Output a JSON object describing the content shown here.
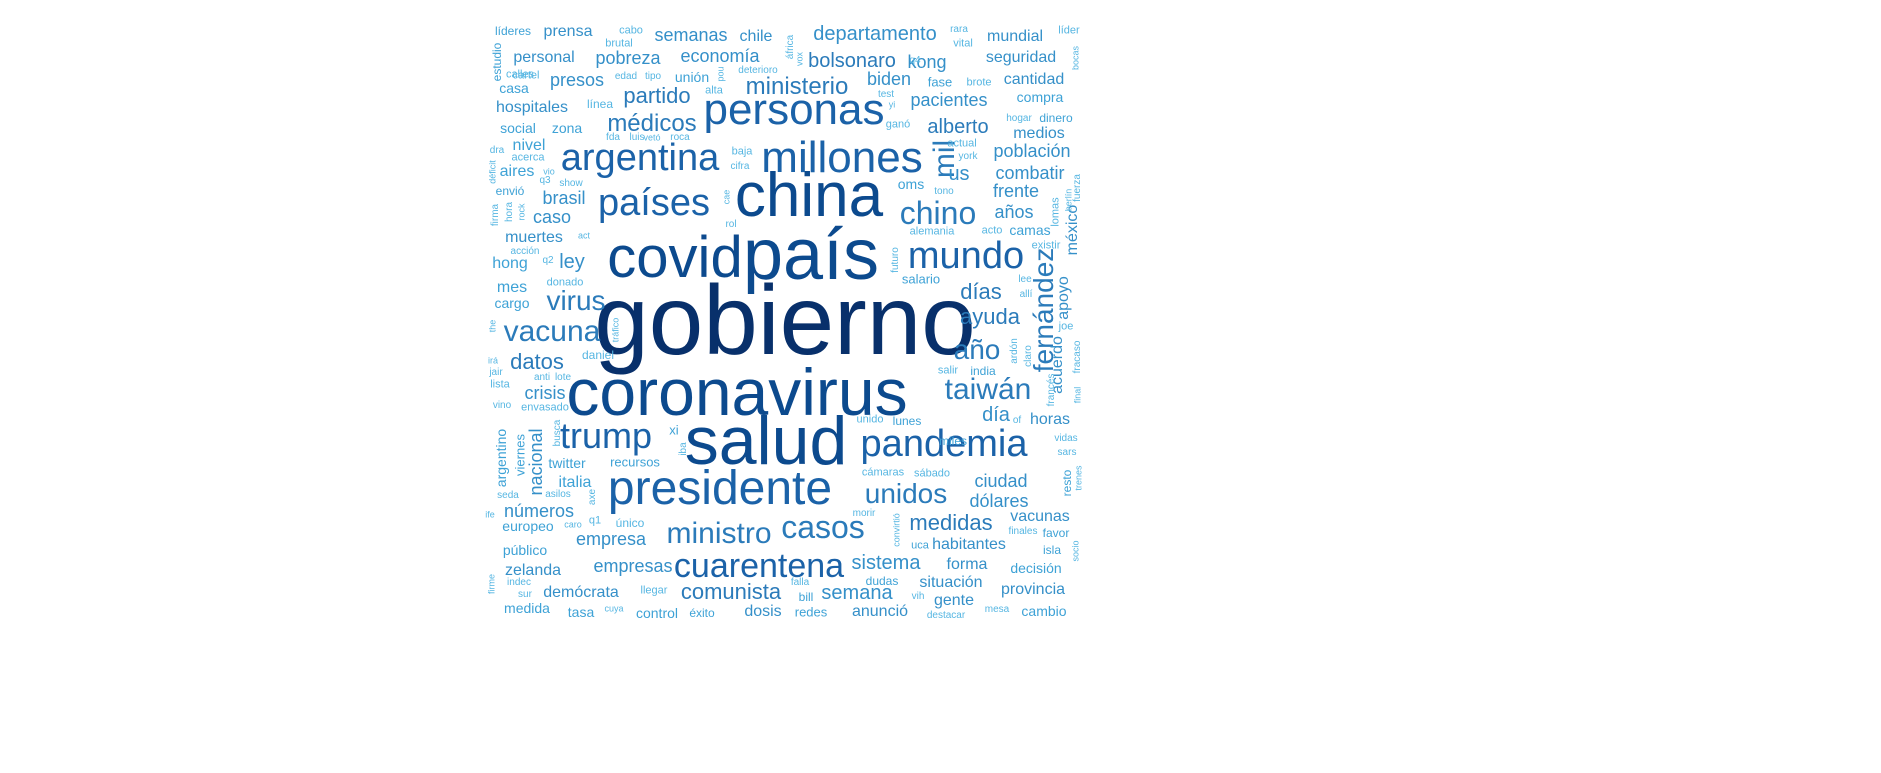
{
  "palette": {
    "darkest": "#08306b",
    "dark": "#0c4a8e",
    "mid_dark": "#1b62a8",
    "mid": "#2b7bba",
    "mid_light": "#3590c9",
    "light": "#3ea2d6",
    "lightest": "#56b6e2"
  },
  "words": [
    {
      "text": "gobierno",
      "tone": "darkest"
    },
    {
      "text": "coronavirus",
      "tone": "dark"
    },
    {
      "text": "salud",
      "tone": "dark"
    },
    {
      "text": "país",
      "tone": "dark"
    },
    {
      "text": "covid",
      "tone": "dark"
    },
    {
      "text": "china",
      "tone": "dark"
    },
    {
      "text": "presidente",
      "tone": "mid_dark"
    },
    {
      "text": "personas",
      "tone": "mid_dark"
    },
    {
      "text": "millones",
      "tone": "mid_dark"
    },
    {
      "text": "argentina",
      "tone": "mid_dark"
    },
    {
      "text": "países",
      "tone": "mid_dark"
    },
    {
      "text": "mundo",
      "tone": "mid_dark"
    },
    {
      "text": "pandemia",
      "tone": "mid_dark"
    },
    {
      "text": "trump",
      "tone": "mid_dark"
    },
    {
      "text": "cuarentena",
      "tone": "mid_dark"
    },
    {
      "text": "vacuna",
      "tone": "mid"
    },
    {
      "text": "casos",
      "tone": "mid"
    },
    {
      "text": "chino",
      "tone": "mid"
    },
    {
      "text": "taiwán",
      "tone": "mid"
    },
    {
      "text": "unidos",
      "tone": "mid"
    },
    {
      "text": "ministro",
      "tone": "mid"
    },
    {
      "text": "mil",
      "tone": "mid"
    },
    {
      "text": "fernández",
      "tone": "mid"
    },
    {
      "text": "virus",
      "tone": "mid"
    },
    {
      "text": "año",
      "tone": "mid"
    },
    {
      "text": "médicos",
      "tone": "mid"
    },
    {
      "text": "partido",
      "tone": "mid"
    },
    {
      "text": "ministerio",
      "tone": "mid"
    },
    {
      "text": "bolsonaro",
      "tone": "mid"
    },
    {
      "text": "alberto",
      "tone": "mid"
    },
    {
      "text": "ayuda",
      "tone": "mid"
    },
    {
      "text": "días",
      "tone": "mid"
    },
    {
      "text": "datos",
      "tone": "mid"
    },
    {
      "text": "medidas",
      "tone": "mid"
    },
    {
      "text": "comunista",
      "tone": "mid"
    },
    {
      "text": "sistema",
      "tone": "mid_light"
    },
    {
      "text": "semana",
      "tone": "mid_light"
    },
    {
      "text": "empresa",
      "tone": "mid_light"
    },
    {
      "text": "economía",
      "tone": "mid_light"
    },
    {
      "text": "departamento",
      "tone": "mid_light"
    },
    {
      "text": "pacientes",
      "tone": "mid_light"
    },
    {
      "text": "biden",
      "tone": "mid_light"
    },
    {
      "text": "kong",
      "tone": "mid_light"
    },
    {
      "text": "us",
      "tone": "mid_light"
    },
    {
      "text": "día",
      "tone": "mid_light"
    },
    {
      "text": "ley",
      "tone": "mid_light"
    },
    {
      "text": "brasil",
      "tone": "mid_light"
    },
    {
      "text": "caso",
      "tone": "mid_light"
    },
    {
      "text": "crisis",
      "tone": "mid_light"
    },
    {
      "text": "ciudad",
      "tone": "mid_light"
    },
    {
      "text": "dólares",
      "tone": "mid_light"
    },
    {
      "text": "años",
      "tone": "mid_light"
    },
    {
      "text": "frente",
      "tone": "mid_light"
    },
    {
      "text": "combatir",
      "tone": "mid_light"
    },
    {
      "text": "población",
      "tone": "mid_light"
    },
    {
      "text": "medios",
      "tone": "mid_light"
    },
    {
      "text": "cantidad",
      "tone": "mid_light"
    },
    {
      "text": "seguridad",
      "tone": "mid_light"
    },
    {
      "text": "mundial",
      "tone": "mid_light"
    },
    {
      "text": "pobreza",
      "tone": "mid_light"
    },
    {
      "text": "semanas",
      "tone": "mid_light"
    },
    {
      "text": "prensa",
      "tone": "mid_light"
    },
    {
      "text": "chile",
      "tone": "mid_light"
    },
    {
      "text": "presos",
      "tone": "mid_light"
    },
    {
      "text": "hospitales",
      "tone": "mid_light"
    },
    {
      "text": "personal",
      "tone": "mid_light"
    },
    {
      "text": "muertes",
      "tone": "mid_light"
    },
    {
      "text": "números",
      "tone": "mid_light"
    },
    {
      "text": "nacional",
      "tone": "mid_light"
    },
    {
      "text": "empresas",
      "tone": "mid_light"
    },
    {
      "text": "zelanda",
      "tone": "mid_light"
    },
    {
      "text": "demócrata",
      "tone": "mid_light"
    },
    {
      "text": "habitantes",
      "tone": "mid_light"
    },
    {
      "text": "situación",
      "tone": "mid_light"
    },
    {
      "text": "provincia",
      "tone": "mid_light"
    },
    {
      "text": "anunció",
      "tone": "mid_light"
    },
    {
      "text": "dosis",
      "tone": "mid_light"
    },
    {
      "text": "vacunas",
      "tone": "mid_light"
    },
    {
      "text": "horas",
      "tone": "mid_light"
    },
    {
      "text": "forma",
      "tone": "mid_light"
    },
    {
      "text": "gente",
      "tone": "mid_light"
    },
    {
      "text": "acuerdo",
      "tone": "mid_light"
    },
    {
      "text": "apoyo",
      "tone": "mid_light"
    },
    {
      "text": "méxico",
      "tone": "mid_light"
    },
    {
      "text": "hong",
      "tone": "light"
    },
    {
      "text": "mes",
      "tone": "light"
    },
    {
      "text": "cargo",
      "tone": "light"
    },
    {
      "text": "social",
      "tone": "light"
    },
    {
      "text": "zona",
      "tone": "light"
    },
    {
      "text": "nivel",
      "tone": "light"
    },
    {
      "text": "aires",
      "tone": "light"
    },
    {
      "text": "envió",
      "tone": "light"
    },
    {
      "text": "casa",
      "tone": "light"
    },
    {
      "text": "estudio",
      "tone": "light"
    },
    {
      "text": "líderes",
      "tone": "light"
    },
    {
      "text": "unión",
      "tone": "light"
    },
    {
      "text": "italia",
      "tone": "light"
    },
    {
      "text": "twitter",
      "tone": "light"
    },
    {
      "text": "recursos",
      "tone": "light"
    },
    {
      "text": "argentino",
      "tone": "light"
    },
    {
      "text": "viernes",
      "tone": "light"
    },
    {
      "text": "europeo",
      "tone": "light"
    },
    {
      "text": "público",
      "tone": "light"
    },
    {
      "text": "medida",
      "tone": "light"
    },
    {
      "text": "tasa",
      "tone": "light"
    },
    {
      "text": "control",
      "tone": "light"
    },
    {
      "text": "éxito",
      "tone": "light"
    },
    {
      "text": "redes",
      "tone": "light"
    },
    {
      "text": "cambio",
      "tone": "light"
    },
    {
      "text": "decisión",
      "tone": "light"
    },
    {
      "text": "isla",
      "tone": "light"
    },
    {
      "text": "favor",
      "tone": "light"
    },
    {
      "text": "resto",
      "tone": "light"
    },
    {
      "text": "oms",
      "tone": "light"
    },
    {
      "text": "salario",
      "tone": "light"
    },
    {
      "text": "camas",
      "tone": "light"
    },
    {
      "text": "compra",
      "tone": "light"
    },
    {
      "text": "dinero",
      "tone": "light"
    },
    {
      "text": "fase",
      "tone": "light"
    },
    {
      "text": "xi",
      "tone": "light"
    },
    {
      "text": "miles",
      "tone": "light"
    },
    {
      "text": "lunes",
      "tone": "light"
    },
    {
      "text": "india",
      "tone": "light"
    },
    {
      "text": "uca",
      "tone": "light"
    },
    {
      "text": "sistema_dudas",
      "display": "dudas",
      "tone": "light"
    },
    {
      "text": "bill",
      "tone": "light"
    },
    {
      "text": "daniel",
      "tone": "lightest"
    },
    {
      "text": "baja",
      "tone": "lightest"
    },
    {
      "text": "alta",
      "tone": "lightest"
    },
    {
      "text": "línea",
      "tone": "lightest"
    },
    {
      "text": "cabo",
      "tone": "lightest"
    },
    {
      "text": "calles",
      "tone": "lightest"
    },
    {
      "text": "brutal",
      "tone": "lightest"
    },
    {
      "text": "cartel",
      "tone": "lightest"
    },
    {
      "text": "edad",
      "tone": "lightest"
    },
    {
      "text": "tipo",
      "tone": "lightest"
    },
    {
      "text": "deterioro",
      "tone": "lightest"
    },
    {
      "text": "áfrica",
      "tone": "lightest"
    },
    {
      "text": "rara",
      "tone": "lightest"
    },
    {
      "text": "vital",
      "tone": "lightest"
    },
    {
      "text": "líder",
      "tone": "lightest"
    },
    {
      "text": "bocas",
      "tone": "lightest"
    },
    {
      "text": "brote",
      "tone": "lightest"
    },
    {
      "text": "test",
      "tone": "lightest"
    },
    {
      "text": "yi",
      "tone": "lightest"
    },
    {
      "text": "hogar",
      "tone": "lightest"
    },
    {
      "text": "ganó",
      "tone": "lightest"
    },
    {
      "text": "roca",
      "tone": "lightest"
    },
    {
      "text": "fda",
      "tone": "lightest"
    },
    {
      "text": "luis",
      "tone": "lightest"
    },
    {
      "text": "vetó",
      "tone": "lightest"
    },
    {
      "text": "acerca",
      "tone": "lightest"
    },
    {
      "text": "dra",
      "tone": "lightest"
    },
    {
      "text": "déficit",
      "tone": "lightest"
    },
    {
      "text": "vio",
      "tone": "lightest"
    },
    {
      "text": "q3",
      "tone": "lightest"
    },
    {
      "text": "show",
      "tone": "lightest"
    },
    {
      "text": "firma",
      "tone": "lightest"
    },
    {
      "text": "hora",
      "tone": "lightest"
    },
    {
      "text": "rock",
      "tone": "lightest"
    },
    {
      "text": "cifra",
      "tone": "lightest"
    },
    {
      "text": "cae",
      "tone": "lightest"
    },
    {
      "text": "rol",
      "tone": "lightest"
    },
    {
      "text": "acción",
      "tone": "lightest"
    },
    {
      "text": "act",
      "tone": "lightest"
    },
    {
      "text": "q2",
      "tone": "lightest"
    },
    {
      "text": "donado",
      "tone": "lightest"
    },
    {
      "text": "futuro",
      "tone": "lightest"
    },
    {
      "text": "alemania",
      "tone": "lightest"
    },
    {
      "text": "acto",
      "tone": "lightest"
    },
    {
      "text": "lomas",
      "tone": "lightest"
    },
    {
      "text": "existir",
      "tone": "lightest"
    },
    {
      "text": "lee",
      "tone": "lightest"
    },
    {
      "text": "allí",
      "tone": "lightest"
    },
    {
      "text": "joe",
      "tone": "lightest"
    },
    {
      "text": "ardón",
      "tone": "lightest"
    },
    {
      "text": "claro",
      "tone": "lightest"
    },
    {
      "text": "fracaso",
      "tone": "lightest"
    },
    {
      "text": "the",
      "tone": "lightest"
    },
    {
      "text": "tráfico",
      "tone": "lightest"
    },
    {
      "text": "irá",
      "tone": "lightest"
    },
    {
      "text": "jair",
      "tone": "lightest"
    },
    {
      "text": "lista",
      "tone": "lightest"
    },
    {
      "text": "anti",
      "tone": "lightest"
    },
    {
      "text": "lote",
      "tone": "lightest"
    },
    {
      "text": "vino",
      "tone": "lightest"
    },
    {
      "text": "envasado",
      "tone": "lightest"
    },
    {
      "text": "busca",
      "tone": "lightest"
    },
    {
      "text": "iba",
      "tone": "lightest"
    },
    {
      "text": "salir",
      "tone": "lightest"
    },
    {
      "text": "unido",
      "tone": "lightest"
    },
    {
      "text": "francés",
      "tone": "lightest"
    },
    {
      "text": "final",
      "tone": "lightest"
    },
    {
      "text": "vidas",
      "tone": "lightest"
    },
    {
      "text": "sars",
      "tone": "lightest"
    },
    {
      "text": "trenes",
      "tone": "lightest"
    },
    {
      "text": "cámaras",
      "tone": "lightest"
    },
    {
      "text": "sábado",
      "tone": "lightest"
    },
    {
      "text": "seda",
      "tone": "lightest"
    },
    {
      "text": "asilos",
      "tone": "lightest"
    },
    {
      "text": "axe",
      "tone": "lightest"
    },
    {
      "text": "ife",
      "tone": "lightest"
    },
    {
      "text": "caro",
      "tone": "lightest"
    },
    {
      "text": "q1",
      "tone": "lightest"
    },
    {
      "text": "único",
      "tone": "lightest"
    },
    {
      "text": "morir",
      "tone": "lightest"
    },
    {
      "text": "convirtió",
      "tone": "lightest"
    },
    {
      "text": "finales",
      "tone": "lightest"
    },
    {
      "text": "socio",
      "tone": "lightest"
    },
    {
      "text": "firme",
      "tone": "lightest"
    },
    {
      "text": "indec",
      "tone": "lightest"
    },
    {
      "text": "sur",
      "tone": "lightest"
    },
    {
      "text": "llegar",
      "tone": "lightest"
    },
    {
      "text": "cuya",
      "tone": "lightest"
    },
    {
      "text": "falla",
      "tone": "lightest"
    },
    {
      "text": "vih",
      "tone": "lightest"
    },
    {
      "text": "mesa",
      "tone": "lightest"
    },
    {
      "text": "destacar",
      "tone": "lightest"
    },
    {
      "text": "actual",
      "tone": "lightest"
    },
    {
      "text": "york",
      "tone": "lightest"
    },
    {
      "text": "tono",
      "tone": "lightest"
    },
    {
      "text": "q4",
      "tone": "lightest"
    },
    {
      "text": "vox",
      "tone": "lightest"
    },
    {
      "text": "pou",
      "tone": "lightest"
    },
    {
      "text": "fuerza",
      "tone": "lightest"
    },
    {
      "text": "berlín",
      "tone": "lightest"
    },
    {
      "text": "of",
      "tone": "lightest"
    }
  ]
}
